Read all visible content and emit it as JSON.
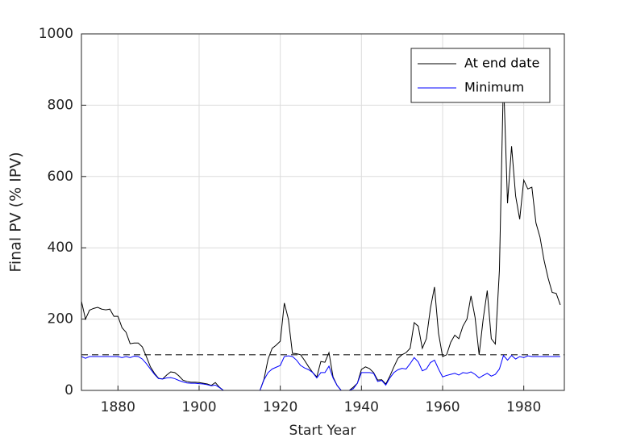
{
  "chart_data": {
    "type": "line",
    "xlabel": "Start Year",
    "ylabel": "Final PV (% IPV)",
    "x": [
      1871,
      1872,
      1873,
      1874,
      1875,
      1876,
      1877,
      1878,
      1879,
      1880,
      1881,
      1882,
      1883,
      1884,
      1885,
      1886,
      1887,
      1888,
      1889,
      1890,
      1891,
      1892,
      1893,
      1894,
      1895,
      1896,
      1897,
      1898,
      1899,
      1900,
      1901,
      1902,
      1903,
      1904,
      1905,
      1906,
      1907,
      1908,
      1909,
      1910,
      1911,
      1912,
      1913,
      1914,
      1915,
      1916,
      1917,
      1918,
      1919,
      1920,
      1921,
      1922,
      1923,
      1924,
      1925,
      1926,
      1927,
      1928,
      1929,
      1930,
      1931,
      1932,
      1933,
      1934,
      1935,
      1936,
      1937,
      1938,
      1939,
      1940,
      1941,
      1942,
      1943,
      1944,
      1945,
      1946,
      1947,
      1948,
      1949,
      1950,
      1951,
      1952,
      1953,
      1954,
      1955,
      1956,
      1957,
      1958,
      1959,
      1960,
      1961,
      1962,
      1963,
      1964,
      1965,
      1966,
      1967,
      1968,
      1969,
      1970,
      1971,
      1972,
      1973,
      1974,
      1975,
      1976,
      1977,
      1978,
      1979,
      1980,
      1981,
      1982,
      1983,
      1984,
      1985,
      1986,
      1987,
      1988,
      1989
    ],
    "series": [
      {
        "name": "At end date",
        "color": "#000000",
        "values": [
          250,
          200,
          225,
          230,
          233,
          228,
          226,
          228,
          208,
          208,
          176,
          163,
          131,
          133,
          133,
          122,
          95,
          66,
          48,
          34,
          32,
          43,
          52,
          50,
          41,
          29,
          25,
          23,
          23,
          22,
          20,
          18,
          14,
          22,
          9,
          0,
          0,
          0,
          0,
          0,
          0,
          0,
          0,
          0,
          0,
          32,
          88,
          118,
          127,
          138,
          245,
          200,
          104,
          103,
          100,
          84,
          66,
          50,
          38,
          81,
          79,
          106,
          38,
          14,
          0,
          0,
          0,
          9,
          20,
          59,
          66,
          61,
          50,
          29,
          30,
          18,
          40,
          66,
          90,
          100,
          106,
          118,
          190,
          180,
          118,
          145,
          230,
          290,
          160,
          95,
          100,
          135,
          155,
          145,
          180,
          200,
          265,
          205,
          100,
          200,
          280,
          145,
          130,
          337,
          880,
          525,
          685,
          545,
          480,
          590,
          565,
          570,
          470,
          430,
          365,
          315,
          275,
          272,
          240
        ]
      },
      {
        "name": "Minimum",
        "color": "#0000ff",
        "values": [
          95,
          90,
          95,
          95,
          95,
          95,
          95,
          95,
          95,
          95,
          92,
          95,
          92,
          96,
          95,
          88,
          75,
          60,
          45,
          33,
          32,
          35,
          36,
          33,
          28,
          24,
          21,
          20,
          20,
          19,
          18,
          16,
          13,
          15,
          8,
          0,
          0,
          0,
          0,
          0,
          0,
          0,
          0,
          0,
          0,
          30,
          50,
          60,
          65,
          70,
          95,
          97,
          95,
          85,
          70,
          63,
          58,
          50,
          35,
          50,
          50,
          68,
          35,
          14,
          0,
          0,
          0,
          5,
          20,
          50,
          50,
          50,
          48,
          25,
          28,
          15,
          35,
          50,
          58,
          62,
          60,
          75,
          92,
          80,
          55,
          60,
          78,
          85,
          60,
          38,
          42,
          45,
          48,
          43,
          50,
          48,
          52,
          45,
          35,
          42,
          48,
          40,
          45,
          60,
          98,
          85,
          98,
          88,
          95,
          92,
          97,
          95,
          95,
          95,
          95,
          95,
          95,
          95,
          95
        ]
      }
    ],
    "hline": 100,
    "xlim": [
      1871,
      1990
    ],
    "xticks": [
      1880,
      1900,
      1920,
      1940,
      1960,
      1980
    ],
    "ylim": [
      0,
      1000
    ],
    "yticks": [
      0,
      200,
      400,
      600,
      800,
      1000
    ],
    "grid": true,
    "legend": "northeast"
  }
}
